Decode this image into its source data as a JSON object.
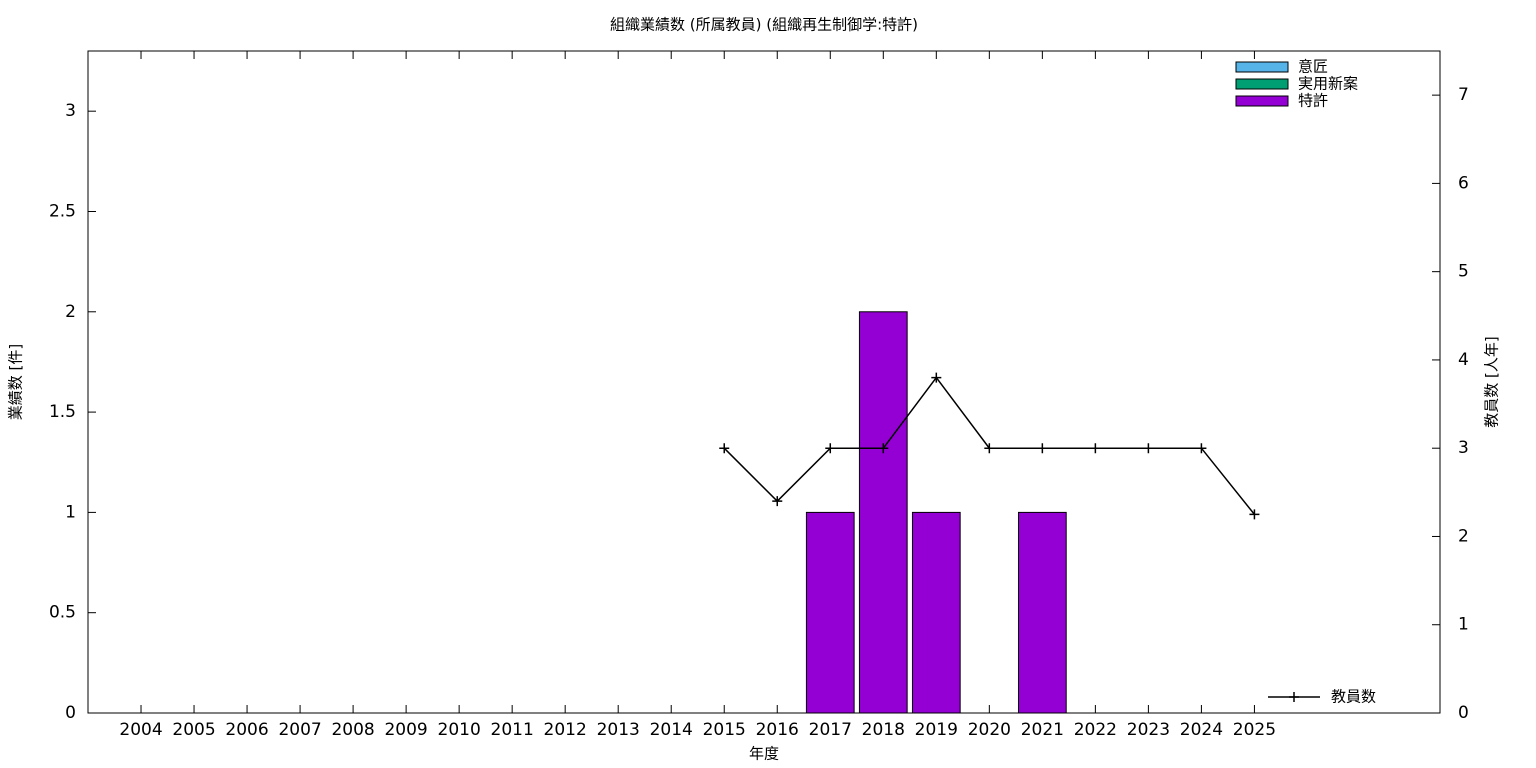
{
  "chart_data": {
    "type": "bar",
    "stacked": true,
    "title": "組織業績数 (所属教員) (組織再生制御学:特許)",
    "x_label": "年度",
    "y_label": "業績数 [件]",
    "y2_label": "教員数 [人年]",
    "categories": [
      "2004",
      "2005",
      "2006",
      "2007",
      "2008",
      "2009",
      "2010",
      "2011",
      "2012",
      "2013",
      "2014",
      "2015",
      "2016",
      "2017",
      "2018",
      "2019",
      "2020",
      "2021",
      "2022",
      "2023",
      "2024",
      "2025"
    ],
    "series": [
      {
        "name": "意匠",
        "color": "#56b4e9",
        "values": [
          0,
          0,
          0,
          0,
          0,
          0,
          0,
          0,
          0,
          0,
          0,
          0,
          0,
          0,
          0,
          0,
          0,
          0,
          0,
          0,
          0,
          0
        ]
      },
      {
        "name": "実用新案",
        "color": "#009e73",
        "values": [
          0,
          0,
          0,
          0,
          0,
          0,
          0,
          0,
          0,
          0,
          0,
          0,
          0,
          0,
          0,
          0,
          0,
          0,
          0,
          0,
          0,
          0
        ]
      },
      {
        "name": "特許",
        "color": "#9400d3",
        "values": [
          0,
          0,
          0,
          0,
          0,
          0,
          0,
          0,
          0,
          0,
          0,
          0,
          0,
          1,
          2,
          1,
          0,
          1,
          0,
          0,
          0,
          0
        ]
      },
      {
        "name": "教員数",
        "type": "line",
        "axis": "y2",
        "color": "#000000",
        "values": [
          null,
          null,
          null,
          null,
          null,
          null,
          null,
          null,
          null,
          null,
          null,
          3,
          2.4,
          3,
          3,
          3.8,
          3,
          3,
          3,
          3,
          3,
          2.25
        ]
      }
    ],
    "ylim": [
      0,
      3.3
    ],
    "yticks": [
      0,
      0.5,
      1,
      1.5,
      2,
      2.5,
      3
    ],
    "y2lim": [
      0,
      7.5
    ],
    "y2ticks": [
      0,
      1,
      2,
      3,
      4,
      5,
      6,
      7
    ],
    "grid": false
  }
}
